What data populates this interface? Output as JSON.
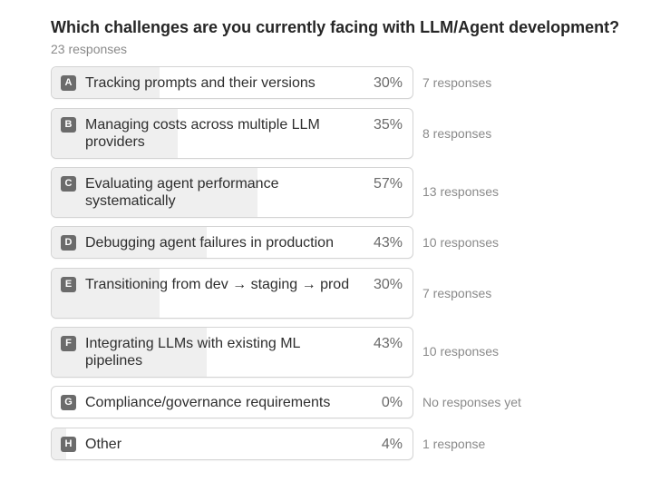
{
  "poll": {
    "question": "Which challenges are you currently facing with LLM/Agent development?",
    "total_responses": "23 responses",
    "bar_color": "#efefef",
    "options": [
      {
        "letter": "A",
        "label": "Tracking prompts and their versions",
        "percent": "30%",
        "fraction": 0.3,
        "responses": "7 responses"
      },
      {
        "letter": "B",
        "label": "Managing costs across multiple LLM providers",
        "percent": "35%",
        "fraction": 0.35,
        "responses": "8 responses"
      },
      {
        "letter": "C",
        "label": "Evaluating agent performance systematically",
        "percent": "57%",
        "fraction": 0.57,
        "responses": "13 responses"
      },
      {
        "letter": "D",
        "label": "Debugging agent failures in production",
        "percent": "43%",
        "fraction": 0.43,
        "responses": "10 responses"
      },
      {
        "letter": "E",
        "label": "Transitioning from dev → staging → prod",
        "percent": "30%",
        "fraction": 0.3,
        "responses": "7 responses"
      },
      {
        "letter": "F",
        "label": "Integrating LLMs with existing ML pipelines",
        "percent": "43%",
        "fraction": 0.43,
        "responses": "10 responses"
      },
      {
        "letter": "G",
        "label": "Compliance/governance requirements",
        "percent": "0%",
        "fraction": 0.0,
        "responses": "No responses yet"
      },
      {
        "letter": "H",
        "label": "Other",
        "percent": "4%",
        "fraction": 0.04,
        "responses": "1 response"
      }
    ]
  }
}
